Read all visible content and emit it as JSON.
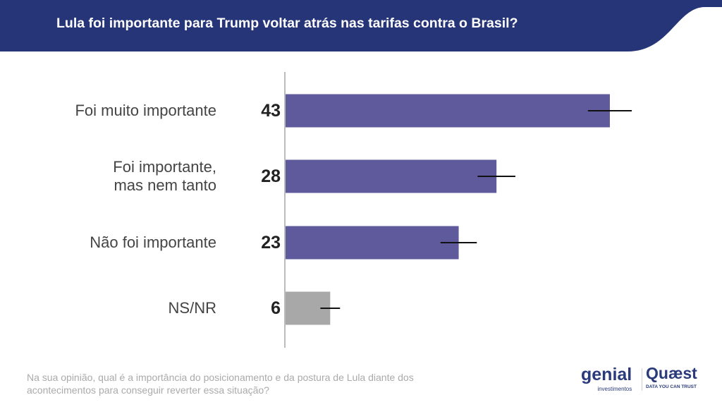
{
  "header": {
    "title": "Lula foi importante para Trump voltar atrás nas tarifas contra o Brasil?"
  },
  "chart_data": {
    "type": "bar",
    "orientation": "horizontal",
    "categories": [
      "Foi muito importante",
      "Foi importante,\nmas nem tanto",
      "Não foi importante",
      "NS/NR"
    ],
    "values": [
      43,
      28,
      23,
      6
    ],
    "error_margin": [
      2.9,
      2.5,
      2.4,
      1.3
    ],
    "colors": [
      "#5f5a9c",
      "#5f5a9c",
      "#5f5a9c",
      "#a8a8a8"
    ],
    "xlim": [
      0,
      55
    ],
    "grid": false
  },
  "footer": {
    "question": "Na sua opinião, qual é a importância do posicionamento e da postura de Lula diante dos acontecimentos para conseguir reverter essa situação?"
  },
  "logos": {
    "genial": "genial",
    "genial_sub": "investimentos",
    "quaest": "Quæst",
    "quaest_sub": "DATA YOU CAN TRUST"
  },
  "colors": {
    "header": "#263578",
    "brand": "#2a3a7a"
  }
}
